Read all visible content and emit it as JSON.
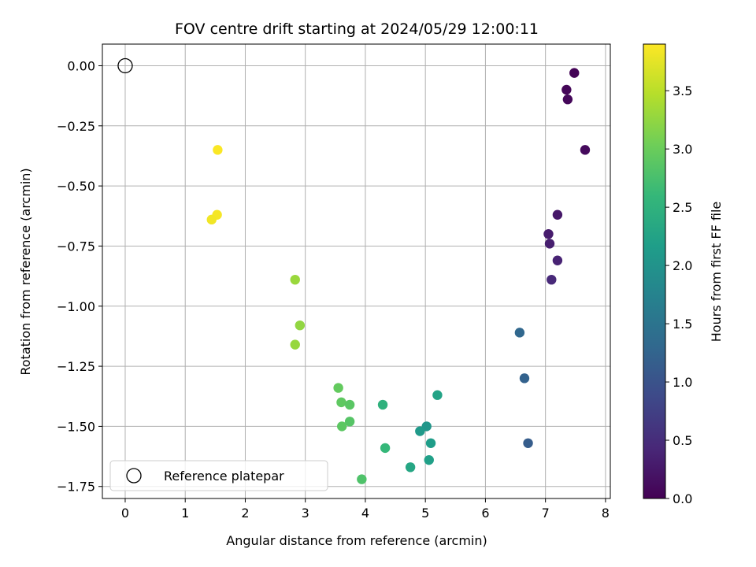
{
  "chart_data": {
    "type": "scatter",
    "title": "FOV centre drift starting at 2024/05/29 12:00:11",
    "xlabel": "Angular distance from reference (arcmin)",
    "ylabel": "Rotation from reference (arcmin)",
    "xlim": [
      -0.38,
      8.08
    ],
    "ylim": [
      -1.8,
      0.09
    ],
    "xticks": [
      0,
      1,
      2,
      3,
      4,
      5,
      6,
      7,
      8
    ],
    "xtick_labels": [
      "0",
      "1",
      "2",
      "3",
      "4",
      "5",
      "6",
      "7",
      "8"
    ],
    "yticks": [
      0.0,
      -0.25,
      -0.5,
      -0.75,
      -1.0,
      -1.25,
      -1.5,
      -1.75
    ],
    "ytick_labels": [
      "0.00",
      "−0.25",
      "−0.50",
      "−0.75",
      "−1.00",
      "−1.25",
      "−1.50",
      "−1.75"
    ],
    "grid": true,
    "colormap": "viridis",
    "colorbar": {
      "label": "Hours from first FF file",
      "range": [
        0.0,
        3.9
      ],
      "ticks": [
        0.0,
        0.5,
        1.0,
        1.5,
        2.0,
        2.5,
        3.0,
        3.5
      ],
      "tick_labels": [
        "0.0",
        "0.5",
        "1.0",
        "1.5",
        "2.0",
        "2.5",
        "3.0",
        "3.5"
      ]
    },
    "legend": {
      "placement": "lower-left",
      "entries": [
        "Reference platepar"
      ]
    },
    "reference_point": {
      "x": 0.0,
      "y": 0.0
    },
    "points": [
      {
        "x": 7.48,
        "y": -0.03,
        "c": 0.02
      },
      {
        "x": 7.35,
        "y": -0.1,
        "c": 0.05
      },
      {
        "x": 7.37,
        "y": -0.14,
        "c": 0.07
      },
      {
        "x": 7.66,
        "y": -0.35,
        "c": 0.1
      },
      {
        "x": 7.2,
        "y": -0.62,
        "c": 0.25
      },
      {
        "x": 7.05,
        "y": -0.7,
        "c": 0.3
      },
      {
        "x": 7.07,
        "y": -0.74,
        "c": 0.33
      },
      {
        "x": 7.2,
        "y": -0.81,
        "c": 0.38
      },
      {
        "x": 7.1,
        "y": -0.89,
        "c": 0.45
      },
      {
        "x": 6.57,
        "y": -1.11,
        "c": 1.3
      },
      {
        "x": 6.65,
        "y": -1.3,
        "c": 1.22
      },
      {
        "x": 6.71,
        "y": -1.57,
        "c": 1.15
      },
      {
        "x": 5.2,
        "y": -1.37,
        "c": 2.25
      },
      {
        "x": 5.02,
        "y": -1.5,
        "c": 2.05
      },
      {
        "x": 4.91,
        "y": -1.52,
        "c": 2.1
      },
      {
        "x": 5.09,
        "y": -1.57,
        "c": 2.15
      },
      {
        "x": 5.06,
        "y": -1.64,
        "c": 2.2
      },
      {
        "x": 4.75,
        "y": -1.67,
        "c": 2.3
      },
      {
        "x": 4.29,
        "y": -1.41,
        "c": 2.5
      },
      {
        "x": 4.33,
        "y": -1.59,
        "c": 2.6
      },
      {
        "x": 3.55,
        "y": -1.34,
        "c": 2.95
      },
      {
        "x": 3.6,
        "y": -1.4,
        "c": 2.92
      },
      {
        "x": 3.74,
        "y": -1.41,
        "c": 2.88
      },
      {
        "x": 3.74,
        "y": -1.48,
        "c": 2.85
      },
      {
        "x": 3.61,
        "y": -1.5,
        "c": 2.9
      },
      {
        "x": 3.94,
        "y": -1.72,
        "c": 2.8
      },
      {
        "x": 2.83,
        "y": -0.89,
        "c": 3.3
      },
      {
        "x": 2.91,
        "y": -1.08,
        "c": 3.25
      },
      {
        "x": 2.83,
        "y": -1.16,
        "c": 3.28
      },
      {
        "x": 1.54,
        "y": -0.35,
        "c": 3.88
      },
      {
        "x": 1.53,
        "y": -0.62,
        "c": 3.85
      },
      {
        "x": 1.44,
        "y": -0.64,
        "c": 3.83
      }
    ]
  }
}
